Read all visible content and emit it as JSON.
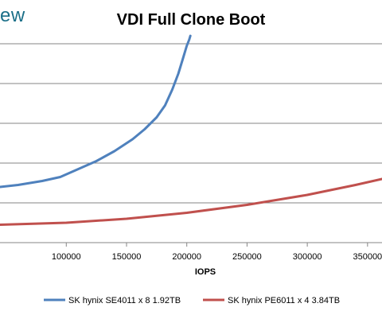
{
  "header": {
    "logo_text": "ew"
  },
  "chart_data": {
    "type": "line",
    "title": "VDI Full Clone Boot",
    "xlabel": "IOPS",
    "ylabel": "",
    "xlim": [
      45000,
      362000
    ],
    "ylim": [
      0,
      1
    ],
    "x_ticks": [
      100000,
      150000,
      200000,
      250000,
      300000,
      350000
    ],
    "x_tick_labels": [
      "100000",
      "150000",
      "200000",
      "250000",
      "300000",
      "350000"
    ],
    "y_gridlines": [
      0.2,
      0.4,
      0.6,
      0.8,
      1.0
    ],
    "grid": true,
    "legend_position": "bottom",
    "series": [
      {
        "name": "SK hynix SE4011 x 8 1.92TB",
        "color": "#4f81bd",
        "x": [
          45000,
          60000,
          80000,
          95000,
          110000,
          125000,
          140000,
          155000,
          165000,
          175000,
          182000,
          188000,
          193000,
          197000,
          200000,
          202000,
          203000
        ],
        "y": [
          0.28,
          0.29,
          0.31,
          0.33,
          0.37,
          0.41,
          0.46,
          0.52,
          0.57,
          0.63,
          0.69,
          0.77,
          0.85,
          0.93,
          0.99,
          1.02,
          1.04
        ]
      },
      {
        "name": "SK hynix PE6011 x 4 3.84TB",
        "color": "#c0504d",
        "x": [
          45000,
          100000,
          150000,
          200000,
          250000,
          300000,
          340000,
          362000
        ],
        "y": [
          0.09,
          0.1,
          0.12,
          0.15,
          0.19,
          0.24,
          0.29,
          0.32
        ]
      }
    ]
  }
}
